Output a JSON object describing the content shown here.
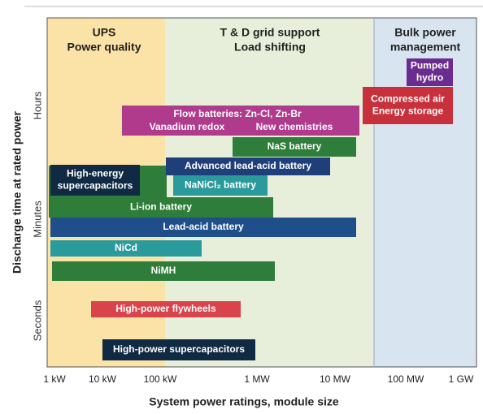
{
  "regions": [
    {
      "lines": [
        "UPS",
        "Power quality"
      ]
    },
    {
      "lines": [
        "T & D grid support",
        "Load shifting"
      ]
    },
    {
      "lines": [
        "Bulk power",
        "management"
      ]
    }
  ],
  "y_axis": {
    "title": "Discharge time at rated power",
    "labels": [
      "Hours",
      "Minutes",
      "Seconds"
    ]
  },
  "x_axis": {
    "title": "System power ratings, module size",
    "labels": [
      "1 kW",
      "10 kW",
      "100 kW",
      "1 MW",
      "10 MW",
      "100 MW",
      "1 GW"
    ]
  },
  "boxes": [
    {
      "lines": [
        "Pumped",
        "hydro"
      ]
    },
    {
      "lines": [
        "Compressed air",
        "Energy storage"
      ]
    },
    {
      "lines": [
        "Flow batteries: Zn-Cl, Zn-Br",
        "Vanadium redox",
        "New chemistries"
      ]
    },
    {
      "lines": [
        "NaS battery"
      ]
    },
    {
      "lines": [
        "Advanced lead-acid battery"
      ]
    },
    {
      "lines": [
        "Li-ion battery"
      ]
    },
    {
      "lines": [
        "High-energy",
        "supercapacitors"
      ]
    },
    {
      "lines": [
        "NaNiCl₂ battery"
      ]
    },
    {
      "lines": [
        "Lead-acid battery"
      ]
    },
    {
      "lines": [
        "NiCd"
      ]
    },
    {
      "lines": [
        "NiMH"
      ]
    },
    {
      "lines": [
        "High-power flywheels"
      ]
    },
    {
      "lines": [
        "High-power supercapacitors"
      ]
    }
  ]
}
